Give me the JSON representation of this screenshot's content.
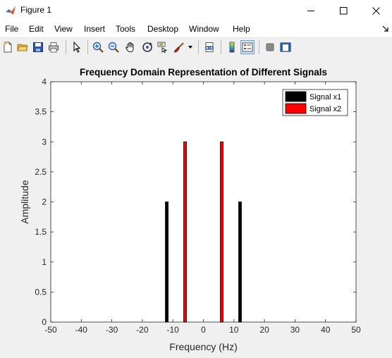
{
  "window": {
    "title": "Figure 1",
    "controls": {
      "minimize": "minimize",
      "maximize": "maximize",
      "close": "close"
    }
  },
  "menu": {
    "items": [
      "File",
      "Edit",
      "View",
      "Insert",
      "Tools",
      "Desktop",
      "Window",
      "Help"
    ]
  },
  "toolbar": {
    "icons": [
      "new-figure-icon",
      "open-file-icon",
      "save-icon",
      "print-icon",
      "select-arrow-icon",
      "zoom-in-icon",
      "zoom-out-icon",
      "pan-hand-icon",
      "rotate-3d-icon",
      "data-cursor-icon",
      "brush-icon",
      "link-plot-icon",
      "colorbar-icon",
      "legend-icon",
      "hide-plot-tools-icon",
      "show-plot-tools-icon"
    ]
  },
  "chart_data": {
    "type": "bar",
    "title": "Frequency Domain Representation of Different Signals",
    "xlabel": "Frequency (Hz)",
    "ylabel": "Amplitude",
    "xlim": [
      -50,
      50
    ],
    "ylim": [
      0,
      4
    ],
    "xticks": [
      "-50",
      "-40",
      "-30",
      "-20",
      "-10",
      "0",
      "10",
      "20",
      "30",
      "40",
      "50"
    ],
    "yticks": [
      "0",
      "0.5",
      "1",
      "1.5",
      "2",
      "2.5",
      "3",
      "3.5",
      "4"
    ],
    "grid": false,
    "legend_position": "top-right",
    "series": [
      {
        "name": "Signal x1",
        "color": "#000000",
        "x": [
          -12,
          12
        ],
        "values": [
          2,
          2
        ]
      },
      {
        "name": "Signal x2",
        "color": "#ff0000",
        "x": [
          -6,
          6
        ],
        "values": [
          3,
          3
        ]
      }
    ]
  }
}
